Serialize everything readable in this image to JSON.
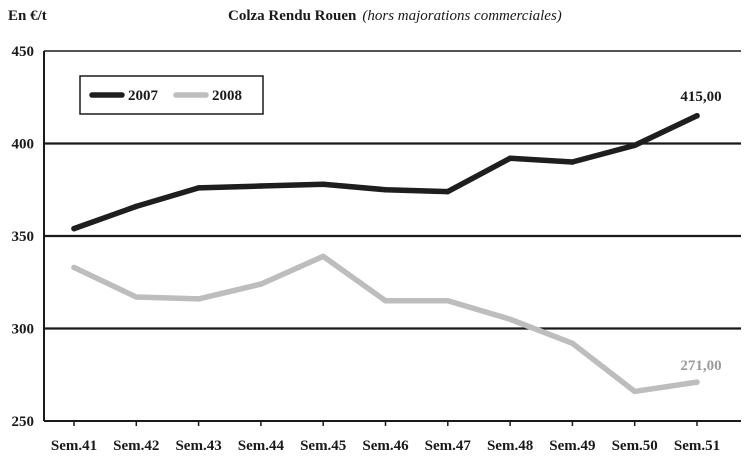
{
  "header": {
    "unit_label": "En €/t",
    "title": "Colza Rendu Rouen",
    "subtitle": "(hors majorations commerciales)"
  },
  "chart_data": {
    "type": "line",
    "title": "Colza Rendu Rouen",
    "subtitle": "(hors majorations commerciales)",
    "ylabel": "En €/t",
    "xlabel": "",
    "ylim": [
      250,
      450
    ],
    "yticks": [
      250,
      300,
      350,
      400,
      450
    ],
    "grid": true,
    "legend_position": "top-left",
    "categories": [
      "Sem.41",
      "Sem.42",
      "Sem.43",
      "Sem.44",
      "Sem.45",
      "Sem.46",
      "Sem.47",
      "Sem.48",
      "Sem.49",
      "Sem.50",
      "Sem.51"
    ],
    "series": [
      {
        "name": "2007",
        "color": "#1e1e1e",
        "values": [
          354,
          366,
          376,
          377,
          378,
          375,
          374,
          392,
          390,
          399,
          415
        ],
        "end_label": "415,00"
      },
      {
        "name": "2008",
        "color": "#bdbdbd",
        "values": [
          333,
          317,
          316,
          324,
          339,
          315,
          315,
          305,
          292,
          266,
          271
        ],
        "end_label": "271,00"
      }
    ]
  }
}
